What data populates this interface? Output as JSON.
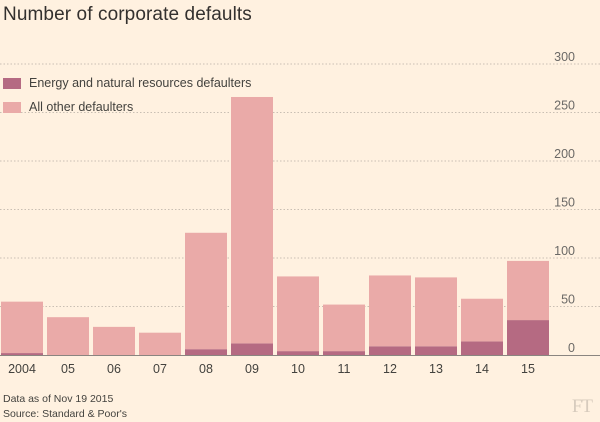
{
  "title": "Number of corporate defaults",
  "notes": {
    "data_as_of": "Data as of Nov 19 2015",
    "source": "Source: Standard & Poor's"
  },
  "logo_text": "FT",
  "colors": {
    "background": "#fff1e0",
    "energy": "#b56a82",
    "other": "#eaaaa8",
    "grid": "#c9bfb3"
  },
  "chart_data": {
    "type": "bar",
    "stacked": true,
    "categories": [
      "2004",
      "05",
      "06",
      "07",
      "08",
      "09",
      "10",
      "11",
      "12",
      "13",
      "14",
      "15"
    ],
    "series": [
      {
        "name": "Energy and natural resources defaulters",
        "values": [
          2,
          0,
          0,
          0,
          6,
          12,
          4,
          4,
          9,
          9,
          14,
          36
        ]
      },
      {
        "name": "All other defaulters",
        "values": [
          53,
          39,
          29,
          23,
          120,
          254,
          77,
          48,
          73,
          71,
          44,
          61
        ]
      }
    ],
    "ylim": [
      0,
      300
    ],
    "yticks": [
      "0",
      "50",
      "100",
      "150",
      "200",
      "250",
      "300"
    ],
    "ytick_values": [
      0,
      50,
      100,
      150,
      200,
      250,
      300
    ],
    "grid": true,
    "legend": "top-left",
    "title": "Number of corporate defaults",
    "xlabel": "",
    "ylabel": ""
  }
}
